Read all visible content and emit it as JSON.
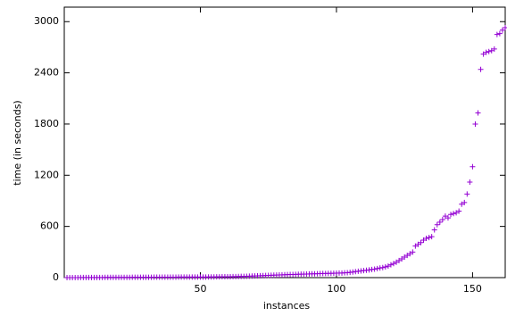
{
  "chart_data": {
    "type": "scatter",
    "x_label": "instances",
    "y_label": "time (in seconds)",
    "color": "#9400d3",
    "x": [
      1,
      2,
      3,
      4,
      5,
      6,
      7,
      8,
      9,
      10,
      11,
      12,
      13,
      14,
      15,
      16,
      17,
      18,
      19,
      20,
      21,
      22,
      23,
      24,
      25,
      26,
      27,
      28,
      29,
      30,
      31,
      32,
      33,
      34,
      35,
      36,
      37,
      38,
      39,
      40,
      41,
      42,
      43,
      44,
      45,
      46,
      47,
      48,
      49,
      50,
      51,
      52,
      53,
      54,
      55,
      56,
      57,
      58,
      59,
      60,
      61,
      62,
      63,
      64,
      65,
      66,
      67,
      68,
      69,
      70,
      71,
      72,
      73,
      74,
      75,
      76,
      77,
      78,
      79,
      80,
      81,
      82,
      83,
      84,
      85,
      86,
      87,
      88,
      89,
      90,
      91,
      92,
      93,
      94,
      95,
      96,
      97,
      98,
      99,
      100,
      101,
      102,
      103,
      104,
      105,
      106,
      107,
      108,
      109,
      110,
      111,
      112,
      113,
      114,
      115,
      116,
      117,
      118,
      119,
      120,
      121,
      122,
      123,
      124,
      125,
      126,
      127,
      128,
      129,
      130,
      131,
      132,
      133,
      134,
      135,
      136,
      137,
      138,
      139,
      140,
      141,
      142,
      143,
      144,
      145,
      146,
      147,
      148,
      149,
      150,
      151,
      152,
      153,
      154,
      155,
      156,
      157,
      158,
      159,
      160,
      161,
      162
    ],
    "values": [
      0,
      0,
      0,
      0,
      0,
      1,
      1,
      1,
      1,
      1,
      1,
      1,
      1,
      1,
      2,
      2,
      2,
      2,
      3,
      3,
      3,
      3,
      3,
      3,
      4,
      4,
      4,
      4,
      4,
      4,
      4,
      4,
      5,
      5,
      5,
      5,
      5,
      5,
      5,
      5,
      5,
      6,
      6,
      6,
      6,
      6,
      6,
      6,
      7,
      7,
      7,
      7,
      8,
      8,
      8,
      9,
      9,
      10,
      10,
      11,
      11,
      12,
      12,
      13,
      14,
      15,
      16,
      17,
      18,
      20,
      21,
      22,
      24,
      25,
      26,
      28,
      29,
      30,
      31,
      33,
      34,
      35,
      36,
      37,
      38,
      39,
      40,
      41,
      42,
      43,
      44,
      45,
      46,
      47,
      48,
      49,
      50,
      50,
      51,
      52,
      53,
      54,
      56,
      58,
      62,
      66,
      70,
      74,
      78,
      82,
      86,
      90,
      95,
      100,
      106,
      112,
      118,
      125,
      135,
      150,
      165,
      180,
      200,
      220,
      240,
      260,
      280,
      300,
      370,
      390,
      410,
      440,
      460,
      470,
      480,
      560,
      620,
      650,
      680,
      720,
      700,
      740,
      750,
      760,
      780,
      860,
      880,
      980,
      1120,
      1300,
      1800,
      1930,
      2440,
      2620,
      2640,
      2650,
      2660,
      2680,
      2850,
      2860,
      2900,
      2930
    ],
    "xlim": [
      0,
      162
    ],
    "ylim": [
      0,
      3170
    ],
    "xticks": [
      50,
      100,
      150
    ],
    "yticks": [
      0,
      600,
      1200,
      1800,
      2400,
      3000
    ]
  }
}
